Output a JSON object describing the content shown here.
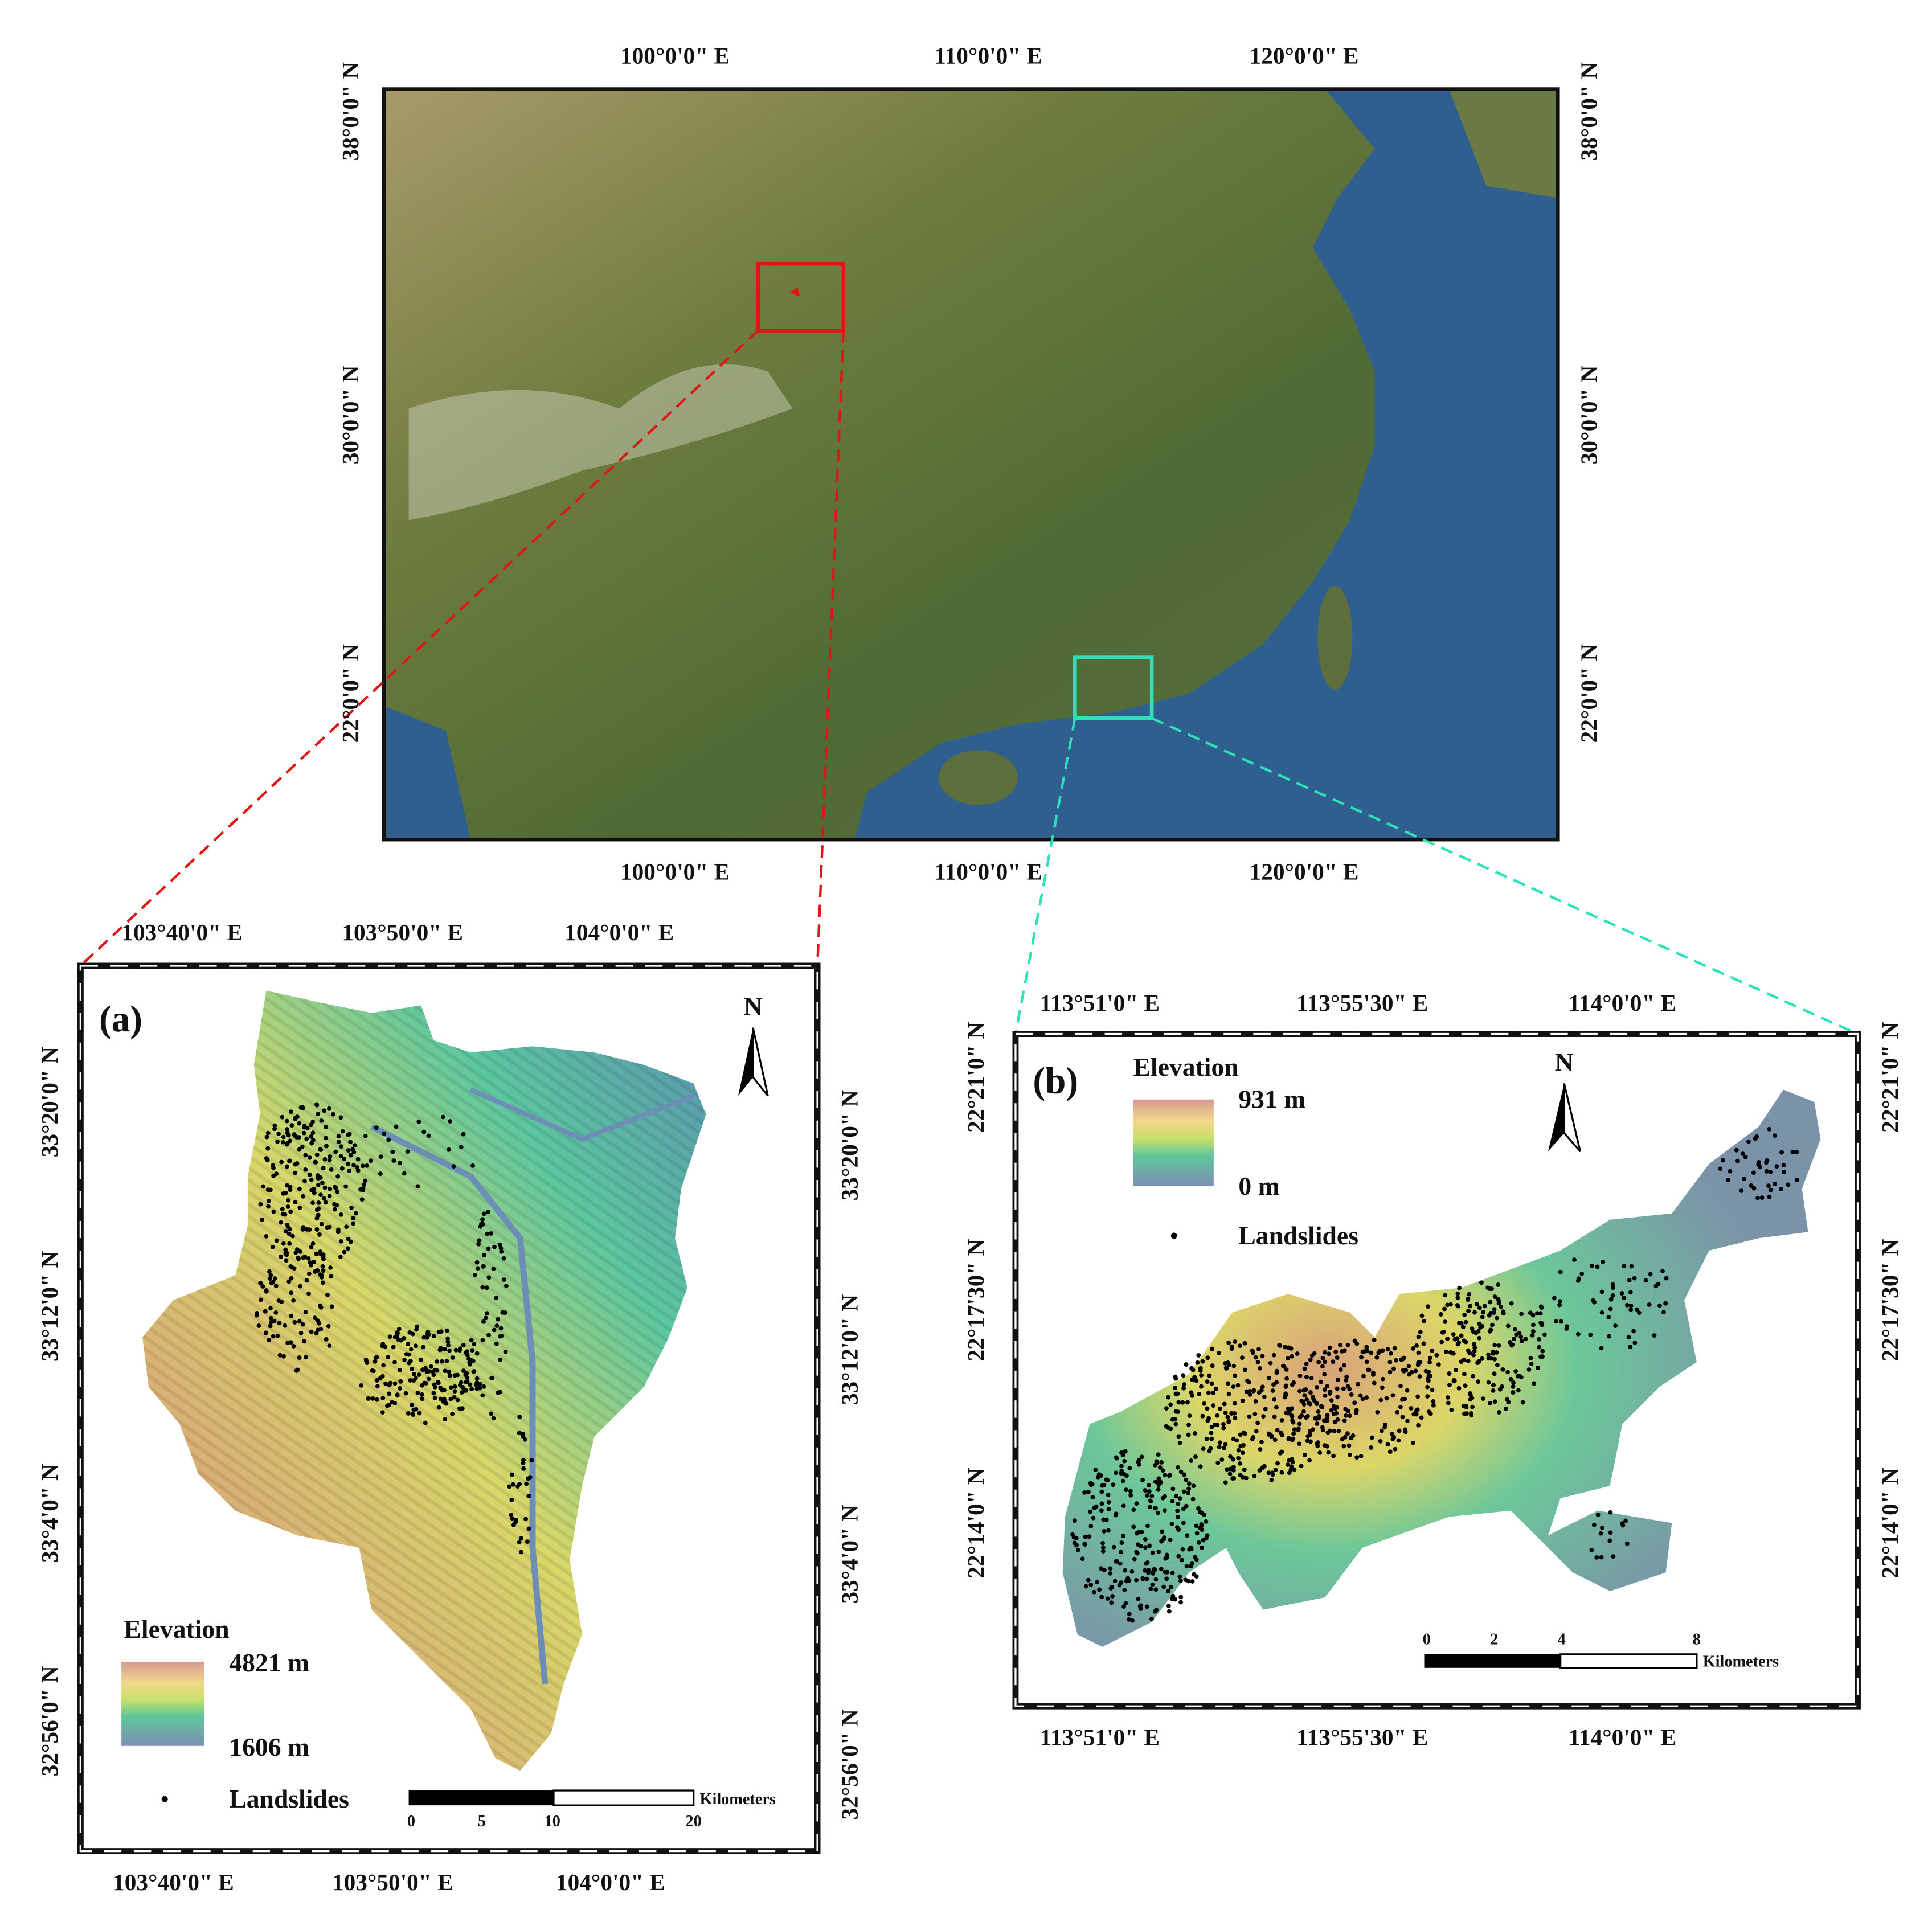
{
  "overview_map": {
    "top_labels": [
      "100°0'0\" E",
      "110°0'0\" E",
      "120°0'0\" E"
    ],
    "bottom_labels": [
      "100°0'0\" E",
      "110°0'0\" E",
      "120°0'0\" E"
    ],
    "left_labels": [
      "38°0'0\" N",
      "30°0'0\" N",
      "22°0'0\" N"
    ],
    "right_labels": [
      "38°0'0\" N",
      "30°0'0\" N",
      "22°0'0\" N"
    ]
  },
  "panel_a": {
    "label": "(a)",
    "north": "N",
    "top_labels": [
      "103°40'0\" E",
      "103°50'0\" E",
      "104°0'0\" E"
    ],
    "bottom_labels": [
      "103°40'0\" E",
      "103°50'0\" E",
      "104°0'0\" E"
    ],
    "left_labels": [
      "33°20'0\" N",
      "33°12'0\" N",
      "33°4'0\" N",
      "32°56'0\" N"
    ],
    "right_labels": [
      "33°20'0\" N",
      "33°12'0\" N",
      "33°4'0\" N",
      "32°56'0\" N"
    ],
    "legend": {
      "title": "Elevation",
      "max": "4821 m",
      "min": "1606 m",
      "points": "Landslides"
    },
    "scale_bar": {
      "ticks": [
        0,
        5,
        10,
        20
      ],
      "unit": "Kilometers"
    }
  },
  "panel_b": {
    "label": "(b)",
    "north": "N",
    "top_labels": [
      "113°51'0\" E",
      "113°55'30\" E",
      "114°0'0\" E"
    ],
    "bottom_labels": [
      "113°51'0\" E",
      "113°55'30\" E",
      "114°0'0\" E"
    ],
    "left_labels": [
      "22°21'0\" N",
      "22°17'30\" N",
      "22°14'0\" N"
    ],
    "right_labels": [
      "22°21'0\" N",
      "22°17'30\" N",
      "22°14'0\" N"
    ],
    "legend": {
      "title": "Elevation",
      "max": "931 m",
      "min": "0 m",
      "points": "Landslides"
    },
    "scale_bar": {
      "ticks": [
        0,
        2,
        4,
        8
      ],
      "unit": "Kilometers"
    }
  }
}
